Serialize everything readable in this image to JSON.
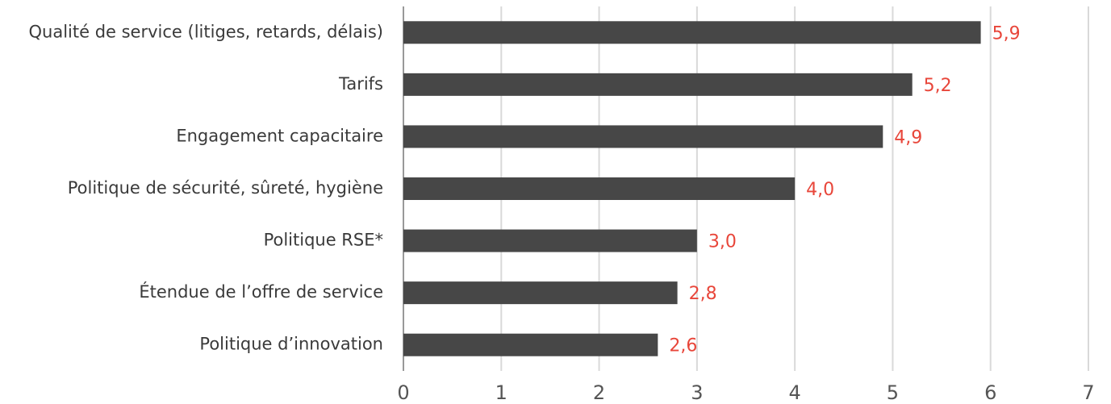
{
  "chart_data": {
    "type": "bar",
    "orientation": "horizontal",
    "categories": [
      "Qualité de service (litiges, retards, délais)",
      "Tarifs",
      "Engagement capacitaire",
      "Politique de sécurité, sûreté, hygiène",
      "Politique RSE*",
      "Étendue de l’offre de service",
      "Politique d’innovation"
    ],
    "values": [
      5.9,
      5.2,
      4.9,
      4.0,
      3.0,
      2.8,
      2.6
    ],
    "value_labels": [
      "5,9",
      "5,2",
      "4,9",
      "4,0",
      "3,0",
      "2,8",
      "2,6"
    ],
    "color": "#474747",
    "label_color": "#e8463a",
    "xlim": [
      0,
      7
    ],
    "xticks": [
      0,
      1,
      2,
      3,
      4,
      5,
      6,
      7
    ],
    "grid": true
  }
}
